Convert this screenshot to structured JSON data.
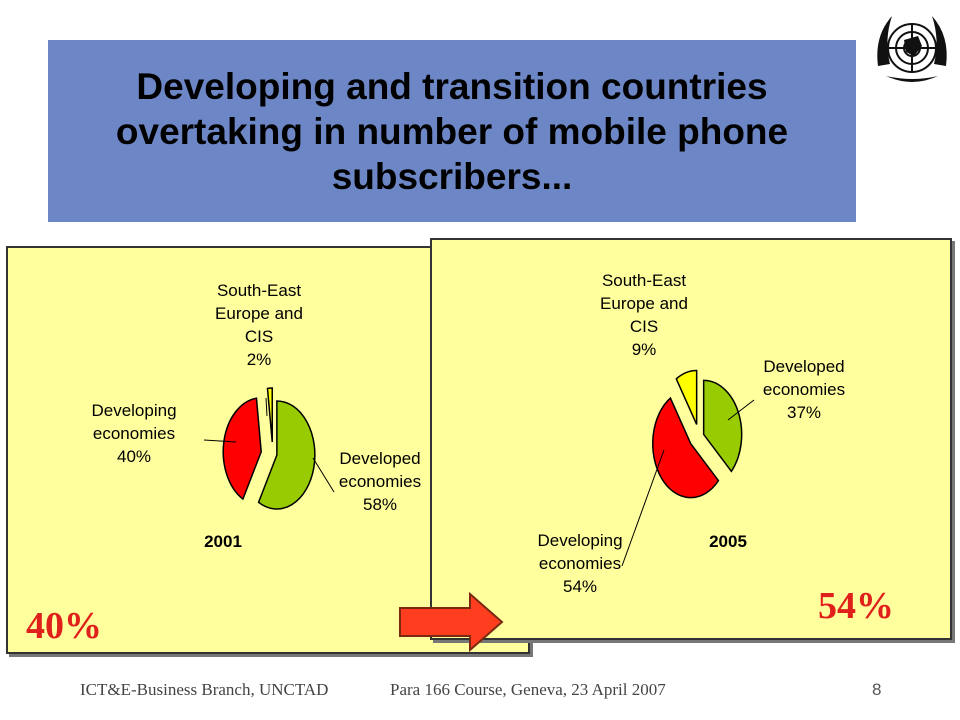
{
  "slide": {
    "title": "Developing and transition countries overtaking in number of mobile phone subscribers...",
    "left_highlight": "40%",
    "right_highlight": "54%",
    "footer_left": "ICT&E-Business Branch, UNCTAD",
    "footer_center": "Para 166 Course, Geneva, 23 April 2007",
    "page_number": "8"
  },
  "colors": {
    "title_bg": "#6d87c6",
    "panel_bg": "#ffff9e",
    "developed": "#99cc00",
    "developing": "#ff0000",
    "see_cis": "#ffff00",
    "highlight": "#e0201a"
  },
  "chart_data": [
    {
      "type": "pie",
      "title": "2001",
      "categories": [
        "Developed economies",
        "Developing economies",
        "South-East Europe and CIS"
      ],
      "values": [
        58,
        40,
        2
      ],
      "unit": "%",
      "labels": [
        [
          "Developed",
          "economies",
          "58%"
        ],
        [
          "Developing",
          "economies",
          "40%"
        ],
        [
          "South-East",
          "Europe and",
          "CIS",
          "2%"
        ]
      ]
    },
    {
      "type": "pie",
      "title": "2005",
      "categories": [
        "Developed economies",
        "Developing economies",
        "South-East Europe and CIS"
      ],
      "values": [
        37,
        54,
        9
      ],
      "unit": "%",
      "labels": [
        [
          "Developed",
          "economies",
          "37%"
        ],
        [
          "Developing",
          "economies",
          "54%"
        ],
        [
          "South-East",
          "Europe and",
          "CIS",
          "9%"
        ]
      ]
    }
  ]
}
